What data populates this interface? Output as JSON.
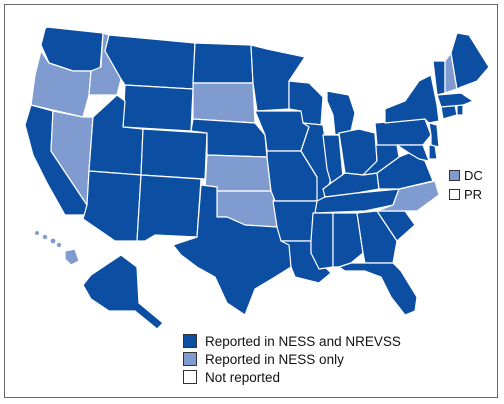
{
  "colors": {
    "ness_and_nrevss": "#0B4EA2",
    "ness_only": "#7F9BD0",
    "not_reported": "#FFFFFF",
    "border": "#FFFFFF"
  },
  "legend": {
    "items": [
      {
        "label": "Reported in NESS and NREVSS",
        "category": "ness_and_nrevss"
      },
      {
        "label": "Reported in NESS only",
        "category": "ness_only"
      },
      {
        "label": "Not reported",
        "category": "not_reported"
      }
    ]
  },
  "territories": {
    "dc": {
      "label": "DC",
      "category": "ness_only"
    },
    "pr": {
      "label": "PR",
      "category": "not_reported"
    }
  },
  "states": {
    "WA": "ness_and_nrevss",
    "OR": "ness_only",
    "CA": "ness_and_nrevss",
    "ID": "ness_only",
    "NV": "ness_only",
    "MT": "ness_and_nrevss",
    "WY": "ness_and_nrevss",
    "UT": "ness_and_nrevss",
    "AZ": "ness_and_nrevss",
    "CO": "ness_and_nrevss",
    "NM": "ness_and_nrevss",
    "ND": "ness_and_nrevss",
    "SD": "ness_only",
    "NE": "ness_and_nrevss",
    "KS": "ness_only",
    "OK": "ness_only",
    "TX": "ness_and_nrevss",
    "MN": "ness_and_nrevss",
    "IA": "ness_and_nrevss",
    "MO": "ness_and_nrevss",
    "AR": "ness_and_nrevss",
    "LA": "ness_and_nrevss",
    "WI": "ness_and_nrevss",
    "IL": "ness_and_nrevss",
    "MI": "ness_and_nrevss",
    "IN": "ness_and_nrevss",
    "OH": "ness_and_nrevss",
    "KY": "ness_and_nrevss",
    "TN": "ness_and_nrevss",
    "MS": "ness_and_nrevss",
    "AL": "ness_and_nrevss",
    "GA": "ness_and_nrevss",
    "FL": "ness_and_nrevss",
    "SC": "ness_and_nrevss",
    "NC": "ness_only",
    "VA": "ness_and_nrevss",
    "WV": "ness_and_nrevss",
    "MD": "ness_and_nrevss",
    "DE": "ness_and_nrevss",
    "NJ": "ness_and_nrevss",
    "PA": "ness_and_nrevss",
    "NY": "ness_and_nrevss",
    "CT": "ness_and_nrevss",
    "RI": "ness_and_nrevss",
    "MA": "ness_and_nrevss",
    "VT": "ness_and_nrevss",
    "NH": "ness_only",
    "ME": "ness_and_nrevss",
    "AK": "ness_and_nrevss",
    "HI": "ness_only"
  }
}
